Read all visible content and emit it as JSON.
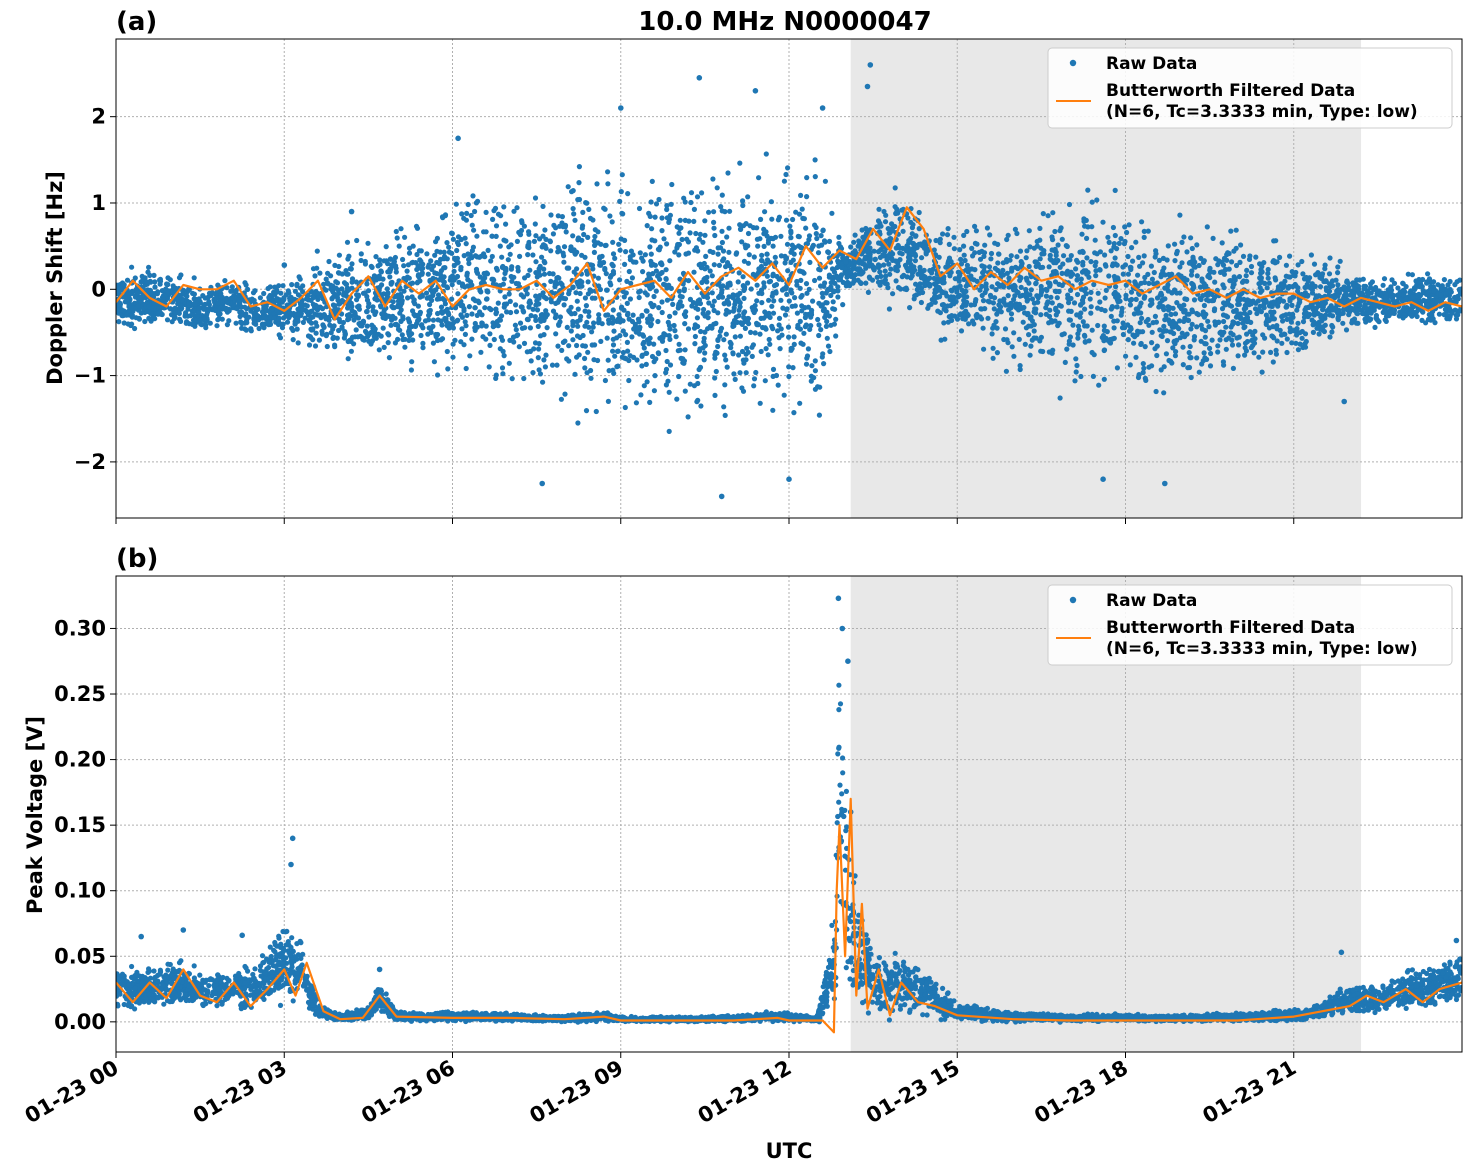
{
  "figure": {
    "title": "10.0 MHz N0000047",
    "xlabel": "UTC"
  },
  "colors": {
    "raw": "#1f77b4",
    "filtered": "#ff7f0e",
    "night_shade": "#e8e8e8",
    "grid": "#b0b0b0"
  },
  "chart_data": [
    {
      "type": "scatter",
      "panel_label": "(a)",
      "ylabel": "Doppler Shift [Hz]",
      "xlim": [
        "01-23 00:00",
        "01-23 24:00"
      ],
      "ylim": [
        -2.65,
        2.9
      ],
      "yticks": [
        -2,
        -1,
        0,
        1,
        2
      ],
      "ytick_labels": [
        "−2",
        "−1",
        "0",
        "1",
        "2"
      ],
      "xticks": [
        "01-23 00",
        "01-23 03",
        "01-23 06",
        "01-23 09",
        "01-23 12",
        "01-23 15",
        "01-23 18",
        "01-23 21"
      ],
      "grid": true,
      "shaded_region": {
        "start_hour": 13.1,
        "end_hour": 22.2
      },
      "legend": {
        "placement": "top-right",
        "entries": [
          "Raw Data",
          "Butterworth Filtered Data",
          "(N=6, Tc=3.3333 min, Type: low)"
        ]
      },
      "series": [
        {
          "name": "Raw Data",
          "kind": "scatter-envelope",
          "hours": [
            0,
            0.5,
            1,
            1.5,
            2,
            2.5,
            3,
            3.5,
            4,
            4.5,
            5,
            5.5,
            6,
            6.5,
            7,
            7.5,
            8,
            8.5,
            9,
            9.5,
            10,
            10.5,
            11,
            11.5,
            12,
            12.5,
            13,
            13.5,
            14,
            14.5,
            15,
            15.5,
            16,
            16.5,
            17,
            17.5,
            18,
            18.5,
            19,
            19.5,
            20,
            20.5,
            21,
            21.5,
            22,
            22.5,
            23,
            23.5,
            24
          ],
          "upper": [
            0.2,
            0.3,
            0.2,
            0.1,
            0.15,
            0.05,
            0.15,
            0.35,
            0.5,
            0.7,
            0.8,
            0.9,
            1.1,
            1.2,
            1.25,
            1.3,
            1.4,
            1.45,
            1.5,
            1.5,
            1.5,
            1.5,
            1.5,
            1.4,
            1.45,
            1.55,
            0.55,
            0.9,
            1.3,
            0.8,
            0.75,
            0.85,
            1.0,
            1.1,
            1.15,
            1.15,
            1.1,
            1.05,
            1.0,
            0.85,
            0.75,
            0.65,
            0.55,
            0.45,
            0.25,
            0.2,
            0.2,
            0.2,
            0.2
          ],
          "lower": [
            -0.5,
            -0.45,
            -0.5,
            -0.6,
            -0.45,
            -0.55,
            -0.6,
            -0.8,
            -0.9,
            -1.0,
            -1.0,
            -1.05,
            -1.1,
            -1.2,
            -1.25,
            -1.3,
            -1.4,
            -1.5,
            -1.55,
            -1.6,
            -1.6,
            -1.6,
            -1.55,
            -1.5,
            -1.5,
            -1.6,
            -0.05,
            -0.1,
            -0.25,
            -0.5,
            -0.7,
            -0.85,
            -1.0,
            -1.1,
            -1.2,
            -1.25,
            -1.3,
            -1.3,
            -1.25,
            -1.15,
            -1.05,
            -0.95,
            -0.85,
            -0.7,
            -0.5,
            -0.5,
            -0.45,
            -0.45,
            -0.45
          ],
          "outliers": [
            [
              10.4,
              2.45
            ],
            [
              13.45,
              2.6
            ],
            [
              13.4,
              2.35
            ],
            [
              11.4,
              2.3
            ],
            [
              12.6,
              2.1
            ],
            [
              9.0,
              2.1
            ],
            [
              7.6,
              -2.25
            ],
            [
              10.8,
              -2.4
            ],
            [
              17.6,
              -2.2
            ],
            [
              18.7,
              -2.25
            ],
            [
              12.0,
              -2.2
            ],
            [
              3.0,
              0.28
            ],
            [
              6.1,
              1.75
            ],
            [
              4.2,
              0.9
            ],
            [
              21.9,
              -1.3
            ]
          ]
        },
        {
          "name": "Butterworth Filtered Data",
          "kind": "line",
          "hours": [
            0,
            0.3,
            0.6,
            0.9,
            1.2,
            1.5,
            1.8,
            2.1,
            2.4,
            2.7,
            3.0,
            3.3,
            3.6,
            3.9,
            4.2,
            4.5,
            4.8,
            5.1,
            5.4,
            5.7,
            6.0,
            6.3,
            6.6,
            6.9,
            7.2,
            7.5,
            7.8,
            8.1,
            8.4,
            8.7,
            9.0,
            9.3,
            9.6,
            9.9,
            10.2,
            10.5,
            10.8,
            11.1,
            11.4,
            11.7,
            12.0,
            12.3,
            12.6,
            12.9,
            13.2,
            13.5,
            13.8,
            14.1,
            14.4,
            14.7,
            15.0,
            15.3,
            15.6,
            15.9,
            16.2,
            16.5,
            16.8,
            17.1,
            17.4,
            17.7,
            18.0,
            18.3,
            18.6,
            18.9,
            19.2,
            19.5,
            19.8,
            20.1,
            20.4,
            20.7,
            21.0,
            21.3,
            21.6,
            21.9,
            22.2,
            22.5,
            22.8,
            23.1,
            23.4,
            23.7,
            24.0
          ],
          "values": [
            -0.15,
            0.1,
            -0.1,
            -0.2,
            0.05,
            0.0,
            0.0,
            0.1,
            -0.2,
            -0.15,
            -0.25,
            -0.1,
            0.1,
            -0.35,
            -0.05,
            0.15,
            -0.2,
            0.1,
            -0.05,
            0.1,
            -0.2,
            0.0,
            0.05,
            0.0,
            0.0,
            0.1,
            -0.1,
            0.05,
            0.3,
            -0.25,
            0.0,
            0.05,
            0.1,
            -0.1,
            0.2,
            -0.05,
            0.15,
            0.25,
            0.1,
            0.3,
            0.05,
            0.5,
            0.25,
            0.45,
            0.35,
            0.7,
            0.45,
            0.95,
            0.7,
            0.15,
            0.3,
            0.0,
            0.2,
            0.05,
            0.25,
            0.1,
            0.15,
            0.0,
            0.1,
            0.05,
            0.1,
            -0.05,
            0.05,
            0.15,
            -0.05,
            0.0,
            -0.1,
            0.0,
            -0.1,
            -0.05,
            -0.05,
            -0.15,
            -0.1,
            -0.2,
            -0.1,
            -0.15,
            -0.2,
            -0.15,
            -0.25,
            -0.15,
            -0.2
          ]
        }
      ]
    },
    {
      "type": "scatter",
      "panel_label": "(b)",
      "ylabel": "Peak Voltage [V]",
      "xlim": [
        "01-23 00:00",
        "01-23 24:00"
      ],
      "ylim": [
        -0.023,
        0.34
      ],
      "yticks": [
        0.0,
        0.05,
        0.1,
        0.15,
        0.2,
        0.25,
        0.3
      ],
      "ytick_labels": [
        "0.00",
        "0.05",
        "0.10",
        "0.15",
        "0.20",
        "0.25",
        "0.30"
      ],
      "xticks": [
        "01-23 00",
        "01-23 03",
        "01-23 06",
        "01-23 09",
        "01-23 12",
        "01-23 15",
        "01-23 18",
        "01-23 21"
      ],
      "grid": true,
      "shaded_region": {
        "start_hour": 13.1,
        "end_hour": 22.2
      },
      "legend": {
        "placement": "top-right",
        "entries": [
          "Raw Data",
          "Butterworth Filtered Data",
          "(N=6, Tc=3.3333 min, Type: low)"
        ]
      },
      "series": [
        {
          "name": "Raw Data",
          "kind": "scatter-envelope",
          "hours": [
            0,
            0.5,
            1,
            1.5,
            2,
            2.5,
            3,
            3.3,
            3.6,
            4,
            4.5,
            4.7,
            5,
            5.5,
            6,
            7,
            8,
            8.7,
            9,
            10,
            11,
            11.8,
            12.5,
            12.8,
            12.9,
            13.0,
            13.1,
            13.3,
            13.6,
            14,
            14.5,
            15,
            16,
            17,
            18,
            19,
            20,
            21,
            21.5,
            22,
            22.5,
            23,
            23.5,
            24
          ],
          "upper": [
            0.045,
            0.04,
            0.05,
            0.04,
            0.04,
            0.045,
            0.08,
            0.07,
            0.015,
            0.006,
            0.012,
            0.035,
            0.008,
            0.008,
            0.008,
            0.007,
            0.005,
            0.008,
            0.004,
            0.004,
            0.005,
            0.008,
            0.004,
            0.09,
            0.32,
            0.25,
            0.14,
            0.085,
            0.05,
            0.055,
            0.04,
            0.015,
            0.008,
            0.006,
            0.006,
            0.006,
            0.007,
            0.01,
            0.015,
            0.03,
            0.03,
            0.04,
            0.045,
            0.055
          ],
          "lower": [
            0.008,
            0.01,
            0.008,
            0.008,
            0.008,
            0.008,
            0.01,
            0.01,
            0.002,
            0.0,
            0.0,
            0.005,
            0.0,
            0.0,
            0.0,
            0.0,
            0.0,
            0.0,
            0.0,
            0.0,
            0.0,
            0.0,
            0.0,
            0.0,
            0.01,
            0.01,
            0.005,
            0.003,
            0.002,
            0.004,
            0.003,
            0.0,
            0.0,
            0.0,
            0.0,
            0.0,
            0.0,
            0.0,
            0.002,
            0.005,
            0.005,
            0.008,
            0.01,
            0.01
          ],
          "outliers": [
            [
              3.15,
              0.14
            ],
            [
              3.12,
              0.12
            ],
            [
              12.88,
              0.323
            ],
            [
              12.95,
              0.3
            ],
            [
              13.05,
              0.275
            ],
            [
              13.1,
              0.16
            ],
            [
              1.2,
              0.07
            ],
            [
              2.25,
              0.066
            ],
            [
              0.45,
              0.065
            ],
            [
              21.85,
              0.053
            ],
            [
              23.9,
              0.062
            ],
            [
              4.7,
              0.04
            ]
          ]
        },
        {
          "name": "Butterworth Filtered Data",
          "kind": "line",
          "hours": [
            0,
            0.3,
            0.6,
            0.9,
            1.2,
            1.5,
            1.8,
            2.1,
            2.4,
            2.7,
            3.0,
            3.2,
            3.4,
            3.7,
            4.0,
            4.4,
            4.7,
            5.0,
            6.0,
            7.0,
            8.0,
            8.7,
            9.0,
            10.0,
            11.0,
            11.8,
            12.0,
            12.6,
            12.8,
            12.85,
            12.9,
            13.0,
            13.1,
            13.2,
            13.3,
            13.4,
            13.6,
            13.8,
            14.0,
            14.3,
            14.6,
            15.0,
            16.0,
            17.0,
            18.0,
            19.0,
            20.0,
            21.0,
            21.5,
            22.0,
            22.3,
            22.6,
            23.0,
            23.3,
            23.6,
            24.0
          ],
          "values": [
            0.03,
            0.015,
            0.03,
            0.018,
            0.04,
            0.02,
            0.015,
            0.03,
            0.012,
            0.025,
            0.04,
            0.02,
            0.045,
            0.008,
            0.002,
            0.003,
            0.02,
            0.004,
            0.003,
            0.003,
            0.002,
            0.004,
            0.001,
            0.001,
            0.001,
            0.003,
            0.001,
            0.001,
            -0.008,
            0.1,
            0.15,
            0.05,
            0.17,
            0.02,
            0.09,
            0.01,
            0.04,
            0.005,
            0.03,
            0.015,
            0.012,
            0.005,
            0.002,
            0.001,
            0.001,
            0.001,
            0.001,
            0.004,
            0.008,
            0.012,
            0.02,
            0.015,
            0.025,
            0.015,
            0.025,
            0.03
          ]
        }
      ]
    }
  ]
}
